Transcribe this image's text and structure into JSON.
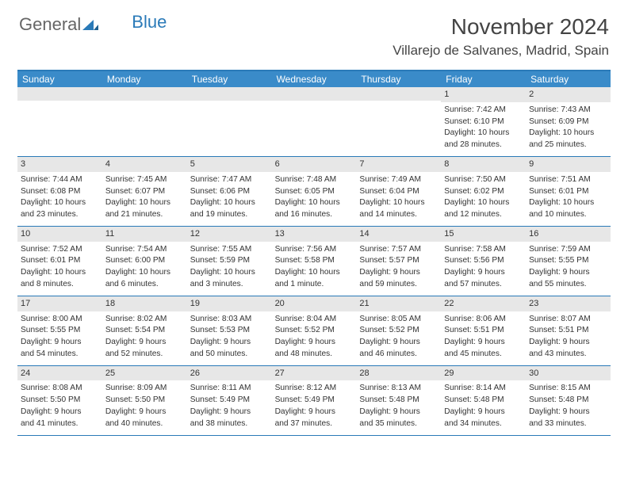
{
  "logo": {
    "part1": "General",
    "part2": "Blue"
  },
  "title": "November 2024",
  "location": "Villarejo de Salvanes, Madrid, Spain",
  "colors": {
    "header_bg": "#3a8bc9",
    "border": "#2a7ab8",
    "daynum_bg": "#e7e7e7",
    "text": "#333333",
    "page_bg": "#ffffff"
  },
  "weekdays": [
    "Sunday",
    "Monday",
    "Tuesday",
    "Wednesday",
    "Thursday",
    "Friday",
    "Saturday"
  ],
  "weeks": [
    [
      null,
      null,
      null,
      null,
      null,
      {
        "n": "1",
        "sr": "Sunrise: 7:42 AM",
        "ss": "Sunset: 6:10 PM",
        "d1": "Daylight: 10 hours",
        "d2": "and 28 minutes."
      },
      {
        "n": "2",
        "sr": "Sunrise: 7:43 AM",
        "ss": "Sunset: 6:09 PM",
        "d1": "Daylight: 10 hours",
        "d2": "and 25 minutes."
      }
    ],
    [
      {
        "n": "3",
        "sr": "Sunrise: 7:44 AM",
        "ss": "Sunset: 6:08 PM",
        "d1": "Daylight: 10 hours",
        "d2": "and 23 minutes."
      },
      {
        "n": "4",
        "sr": "Sunrise: 7:45 AM",
        "ss": "Sunset: 6:07 PM",
        "d1": "Daylight: 10 hours",
        "d2": "and 21 minutes."
      },
      {
        "n": "5",
        "sr": "Sunrise: 7:47 AM",
        "ss": "Sunset: 6:06 PM",
        "d1": "Daylight: 10 hours",
        "d2": "and 19 minutes."
      },
      {
        "n": "6",
        "sr": "Sunrise: 7:48 AM",
        "ss": "Sunset: 6:05 PM",
        "d1": "Daylight: 10 hours",
        "d2": "and 16 minutes."
      },
      {
        "n": "7",
        "sr": "Sunrise: 7:49 AM",
        "ss": "Sunset: 6:04 PM",
        "d1": "Daylight: 10 hours",
        "d2": "and 14 minutes."
      },
      {
        "n": "8",
        "sr": "Sunrise: 7:50 AM",
        "ss": "Sunset: 6:02 PM",
        "d1": "Daylight: 10 hours",
        "d2": "and 12 minutes."
      },
      {
        "n": "9",
        "sr": "Sunrise: 7:51 AM",
        "ss": "Sunset: 6:01 PM",
        "d1": "Daylight: 10 hours",
        "d2": "and 10 minutes."
      }
    ],
    [
      {
        "n": "10",
        "sr": "Sunrise: 7:52 AM",
        "ss": "Sunset: 6:01 PM",
        "d1": "Daylight: 10 hours",
        "d2": "and 8 minutes."
      },
      {
        "n": "11",
        "sr": "Sunrise: 7:54 AM",
        "ss": "Sunset: 6:00 PM",
        "d1": "Daylight: 10 hours",
        "d2": "and 6 minutes."
      },
      {
        "n": "12",
        "sr": "Sunrise: 7:55 AM",
        "ss": "Sunset: 5:59 PM",
        "d1": "Daylight: 10 hours",
        "d2": "and 3 minutes."
      },
      {
        "n": "13",
        "sr": "Sunrise: 7:56 AM",
        "ss": "Sunset: 5:58 PM",
        "d1": "Daylight: 10 hours",
        "d2": "and 1 minute."
      },
      {
        "n": "14",
        "sr": "Sunrise: 7:57 AM",
        "ss": "Sunset: 5:57 PM",
        "d1": "Daylight: 9 hours",
        "d2": "and 59 minutes."
      },
      {
        "n": "15",
        "sr": "Sunrise: 7:58 AM",
        "ss": "Sunset: 5:56 PM",
        "d1": "Daylight: 9 hours",
        "d2": "and 57 minutes."
      },
      {
        "n": "16",
        "sr": "Sunrise: 7:59 AM",
        "ss": "Sunset: 5:55 PM",
        "d1": "Daylight: 9 hours",
        "d2": "and 55 minutes."
      }
    ],
    [
      {
        "n": "17",
        "sr": "Sunrise: 8:00 AM",
        "ss": "Sunset: 5:55 PM",
        "d1": "Daylight: 9 hours",
        "d2": "and 54 minutes."
      },
      {
        "n": "18",
        "sr": "Sunrise: 8:02 AM",
        "ss": "Sunset: 5:54 PM",
        "d1": "Daylight: 9 hours",
        "d2": "and 52 minutes."
      },
      {
        "n": "19",
        "sr": "Sunrise: 8:03 AM",
        "ss": "Sunset: 5:53 PM",
        "d1": "Daylight: 9 hours",
        "d2": "and 50 minutes."
      },
      {
        "n": "20",
        "sr": "Sunrise: 8:04 AM",
        "ss": "Sunset: 5:52 PM",
        "d1": "Daylight: 9 hours",
        "d2": "and 48 minutes."
      },
      {
        "n": "21",
        "sr": "Sunrise: 8:05 AM",
        "ss": "Sunset: 5:52 PM",
        "d1": "Daylight: 9 hours",
        "d2": "and 46 minutes."
      },
      {
        "n": "22",
        "sr": "Sunrise: 8:06 AM",
        "ss": "Sunset: 5:51 PM",
        "d1": "Daylight: 9 hours",
        "d2": "and 45 minutes."
      },
      {
        "n": "23",
        "sr": "Sunrise: 8:07 AM",
        "ss": "Sunset: 5:51 PM",
        "d1": "Daylight: 9 hours",
        "d2": "and 43 minutes."
      }
    ],
    [
      {
        "n": "24",
        "sr": "Sunrise: 8:08 AM",
        "ss": "Sunset: 5:50 PM",
        "d1": "Daylight: 9 hours",
        "d2": "and 41 minutes."
      },
      {
        "n": "25",
        "sr": "Sunrise: 8:09 AM",
        "ss": "Sunset: 5:50 PM",
        "d1": "Daylight: 9 hours",
        "d2": "and 40 minutes."
      },
      {
        "n": "26",
        "sr": "Sunrise: 8:11 AM",
        "ss": "Sunset: 5:49 PM",
        "d1": "Daylight: 9 hours",
        "d2": "and 38 minutes."
      },
      {
        "n": "27",
        "sr": "Sunrise: 8:12 AM",
        "ss": "Sunset: 5:49 PM",
        "d1": "Daylight: 9 hours",
        "d2": "and 37 minutes."
      },
      {
        "n": "28",
        "sr": "Sunrise: 8:13 AM",
        "ss": "Sunset: 5:48 PM",
        "d1": "Daylight: 9 hours",
        "d2": "and 35 minutes."
      },
      {
        "n": "29",
        "sr": "Sunrise: 8:14 AM",
        "ss": "Sunset: 5:48 PM",
        "d1": "Daylight: 9 hours",
        "d2": "and 34 minutes."
      },
      {
        "n": "30",
        "sr": "Sunrise: 8:15 AM",
        "ss": "Sunset: 5:48 PM",
        "d1": "Daylight: 9 hours",
        "d2": "and 33 minutes."
      }
    ]
  ]
}
